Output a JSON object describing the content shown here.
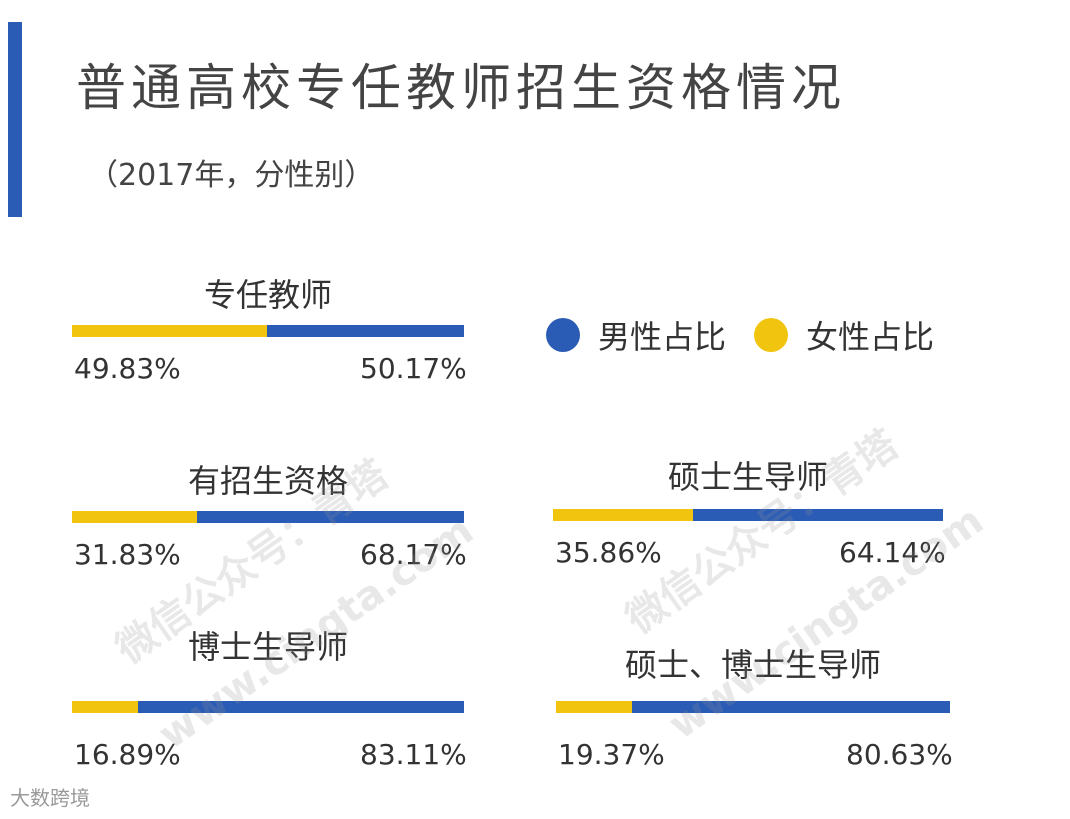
{
  "header": {
    "title": "普通高校专任教师招生资格情况",
    "subtitle": "（2017年，分性别）"
  },
  "colors": {
    "male": "#2a5bb5",
    "female": "#f1c40f",
    "accent": "#2a5bb5"
  },
  "legend": [
    {
      "label": "男性占比",
      "color": "#2a5bb5"
    },
    {
      "label": "女性占比",
      "color": "#f1c40f"
    }
  ],
  "chart_data": {
    "type": "bar",
    "series": [
      {
        "name": "女性占比",
        "values": [
          49.83,
          31.83,
          35.86,
          16.89,
          19.37
        ]
      },
      {
        "name": "男性占比",
        "values": [
          50.17,
          68.17,
          64.14,
          83.11,
          80.63
        ]
      }
    ],
    "categories": [
      "专任教师",
      "有招生资格",
      "硕士生导师",
      "博士生导师",
      "硕士、博士生导师"
    ],
    "labels": {
      "female": [
        "49.83%",
        "31.83%",
        "35.86%",
        "16.89%",
        "19.37%"
      ],
      "male": [
        "50.17%",
        "68.17%",
        "64.14%",
        "83.11%",
        "80.63%"
      ]
    }
  },
  "watermarks": [
    "微信公众号：青塔",
    "www.cingta.com",
    "微信公众号：青塔",
    "www.cingta.com"
  ],
  "footer": {
    "logo": "大数跨境"
  }
}
